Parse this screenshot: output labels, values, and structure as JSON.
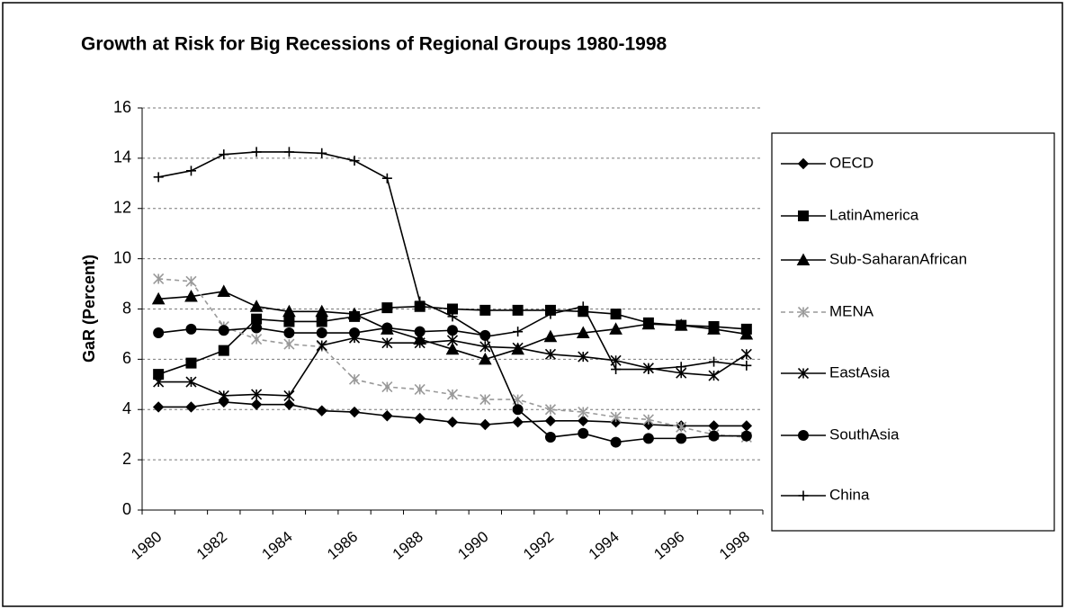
{
  "chart_data": {
    "type": "line",
    "title": "Growth at Risk for Big Recessions of Regional Groups 1980-1998",
    "y_label": "GaR (Percent)",
    "categories": [
      "1980",
      null,
      "1982",
      null,
      "1984",
      null,
      "1986",
      null,
      "1988",
      null,
      "1990",
      null,
      "1992",
      null,
      "1994",
      null,
      "1996",
      null,
      "1998"
    ],
    "ylim": [
      0,
      16
    ],
    "yticks": [
      0,
      2,
      4,
      6,
      8,
      10,
      12,
      14,
      16
    ],
    "grid": true,
    "legend": "right",
    "series": [
      {
        "name": "OECD",
        "color": "#000000",
        "marker": "diamond",
        "values": [
          4.1,
          4.1,
          4.3,
          4.2,
          4.2,
          3.95,
          3.9,
          3.75,
          3.65,
          3.5,
          3.4,
          3.5,
          3.55,
          3.55,
          3.5,
          3.4,
          3.35,
          3.35,
          3.35
        ]
      },
      {
        "name": "LatinAmerica",
        "color": "#000000",
        "marker": "square",
        "values": [
          5.4,
          5.85,
          6.35,
          7.6,
          7.5,
          7.5,
          7.7,
          8.05,
          8.1,
          8.0,
          7.95,
          7.95,
          7.95,
          7.9,
          7.8,
          7.45,
          7.35,
          7.3,
          7.2
        ]
      },
      {
        "name": "Sub-SaharanAfrican",
        "color": "#000000",
        "marker": "triangle",
        "values": [
          8.4,
          8.5,
          8.7,
          8.1,
          7.9,
          7.9,
          7.8,
          7.2,
          6.8,
          6.4,
          6.0,
          6.4,
          6.9,
          7.05,
          7.2,
          7.4,
          7.35,
          7.2,
          7.0
        ]
      },
      {
        "name": "MENA",
        "color": "#999999",
        "marker": "xcross",
        "line_style": "dashed",
        "values": [
          9.2,
          9.1,
          7.3,
          6.8,
          6.6,
          6.5,
          5.2,
          4.9,
          4.8,
          4.6,
          4.4,
          4.4,
          4.0,
          3.9,
          3.7,
          3.6,
          3.3,
          3.0,
          2.9
        ]
      },
      {
        "name": "EastAsia",
        "color": "#000000",
        "marker": "star",
        "values": [
          5.1,
          5.1,
          4.55,
          4.6,
          4.55,
          6.55,
          6.85,
          6.65,
          6.65,
          6.75,
          6.5,
          6.45,
          6.2,
          6.1,
          5.95,
          5.65,
          5.45,
          5.35,
          6.2
        ]
      },
      {
        "name": "SouthAsia",
        "color": "#000000",
        "marker": "circle",
        "values": [
          7.05,
          7.2,
          7.15,
          7.25,
          7.05,
          7.05,
          7.05,
          7.25,
          7.1,
          7.15,
          6.95,
          4.0,
          2.9,
          3.05,
          2.7,
          2.85,
          2.85,
          2.95,
          2.95
        ]
      },
      {
        "name": "China",
        "color": "#000000",
        "marker": "plus",
        "values": [
          13.25,
          13.5,
          14.15,
          14.25,
          14.25,
          14.2,
          13.9,
          13.2,
          8.3,
          7.7,
          6.9,
          7.1,
          7.8,
          8.1,
          5.6,
          5.6,
          5.7,
          5.9,
          5.75
        ]
      }
    ]
  }
}
